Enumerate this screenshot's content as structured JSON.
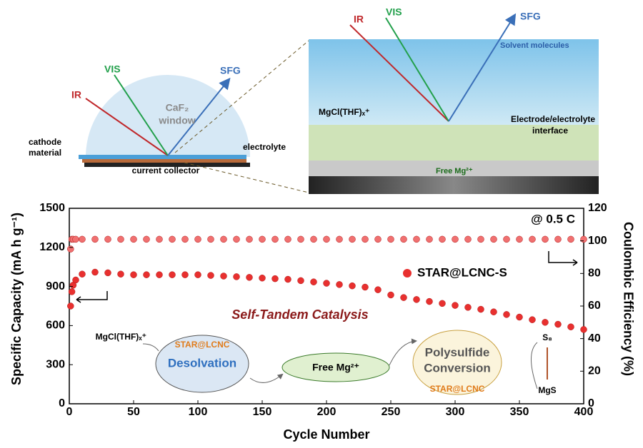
{
  "chart_data": {
    "type": "scatter",
    "xlabel": "Cycle Number",
    "ylabel": "Specific Capacity (mA h g⁻¹)",
    "y2label": "Coulombic Efficiency (%)",
    "annotations": [
      "@ 0.5 C",
      "Self-Tandem Catalysis"
    ],
    "x": [
      1,
      2,
      3,
      5,
      10,
      20,
      30,
      40,
      50,
      60,
      70,
      80,
      90,
      100,
      110,
      120,
      130,
      140,
      150,
      160,
      170,
      180,
      190,
      200,
      210,
      220,
      230,
      240,
      250,
      260,
      270,
      280,
      290,
      300,
      310,
      320,
      330,
      340,
      350,
      360,
      370,
      380,
      390,
      400
    ],
    "series": [
      {
        "name": "STAR@LCNC-S",
        "color": "#e8302f",
        "values": [
          750,
          860,
          910,
          950,
          995,
          1010,
          1005,
          995,
          990,
          990,
          990,
          990,
          990,
          990,
          985,
          980,
          975,
          970,
          965,
          960,
          955,
          945,
          935,
          925,
          915,
          905,
          895,
          875,
          835,
          815,
          800,
          785,
          770,
          755,
          740,
          725,
          705,
          685,
          665,
          645,
          625,
          610,
          590,
          570
        ]
      },
      {
        "color": "#f07070",
        "axis": "y2",
        "values": [
          95,
          101,
          101,
          101,
          101,
          101,
          101,
          101,
          101,
          101,
          101,
          101,
          101,
          101,
          101,
          101,
          101,
          101,
          101,
          101,
          101,
          101,
          101,
          101,
          101,
          101,
          101,
          101,
          101,
          101,
          101,
          101,
          101,
          101,
          101,
          101,
          101,
          101,
          101,
          101,
          101,
          101,
          101,
          101
        ]
      }
    ],
    "xlim": [
      0,
      400
    ],
    "xticks": [
      0,
      50,
      100,
      150,
      200,
      250,
      300,
      350,
      400
    ],
    "ylim": [
      0,
      1500
    ],
    "yticks": [
      0,
      300,
      600,
      900,
      1200,
      1500
    ],
    "y2lim": [
      0,
      120
    ],
    "y2ticks": [
      0,
      20,
      40,
      60,
      80,
      100,
      120
    ],
    "legend": "right"
  },
  "schematic": {
    "setup": {
      "ir": "IR",
      "vis": "VIS",
      "sfg": "SFG",
      "window": "CaF₂",
      "window2": "window",
      "cathode": "cathode",
      "cathode2": "material",
      "electrolyte": "electrolyte",
      "collector": "current collector"
    },
    "interface": {
      "ir": "IR",
      "vis": "VIS",
      "sfg": "SFG",
      "solvent": "Solvent molecules",
      "complex": "MgCl(THF)ₓ⁺",
      "interface": "Electrode/electrolyte",
      "interface2": "interface",
      "free": "Free Mg²⁺"
    },
    "cycle": {
      "complex": "MgCl(THF)ₓ⁺",
      "catalyst1": "STAR@LCNC",
      "desolvation": "Desolvation",
      "free": "Free Mg²⁺",
      "conversion": "Polysulfide",
      "conversion2": "Conversion",
      "catalyst2": "STAR@LCNC",
      "s8": "S₈",
      "mgs": "MgS"
    }
  }
}
